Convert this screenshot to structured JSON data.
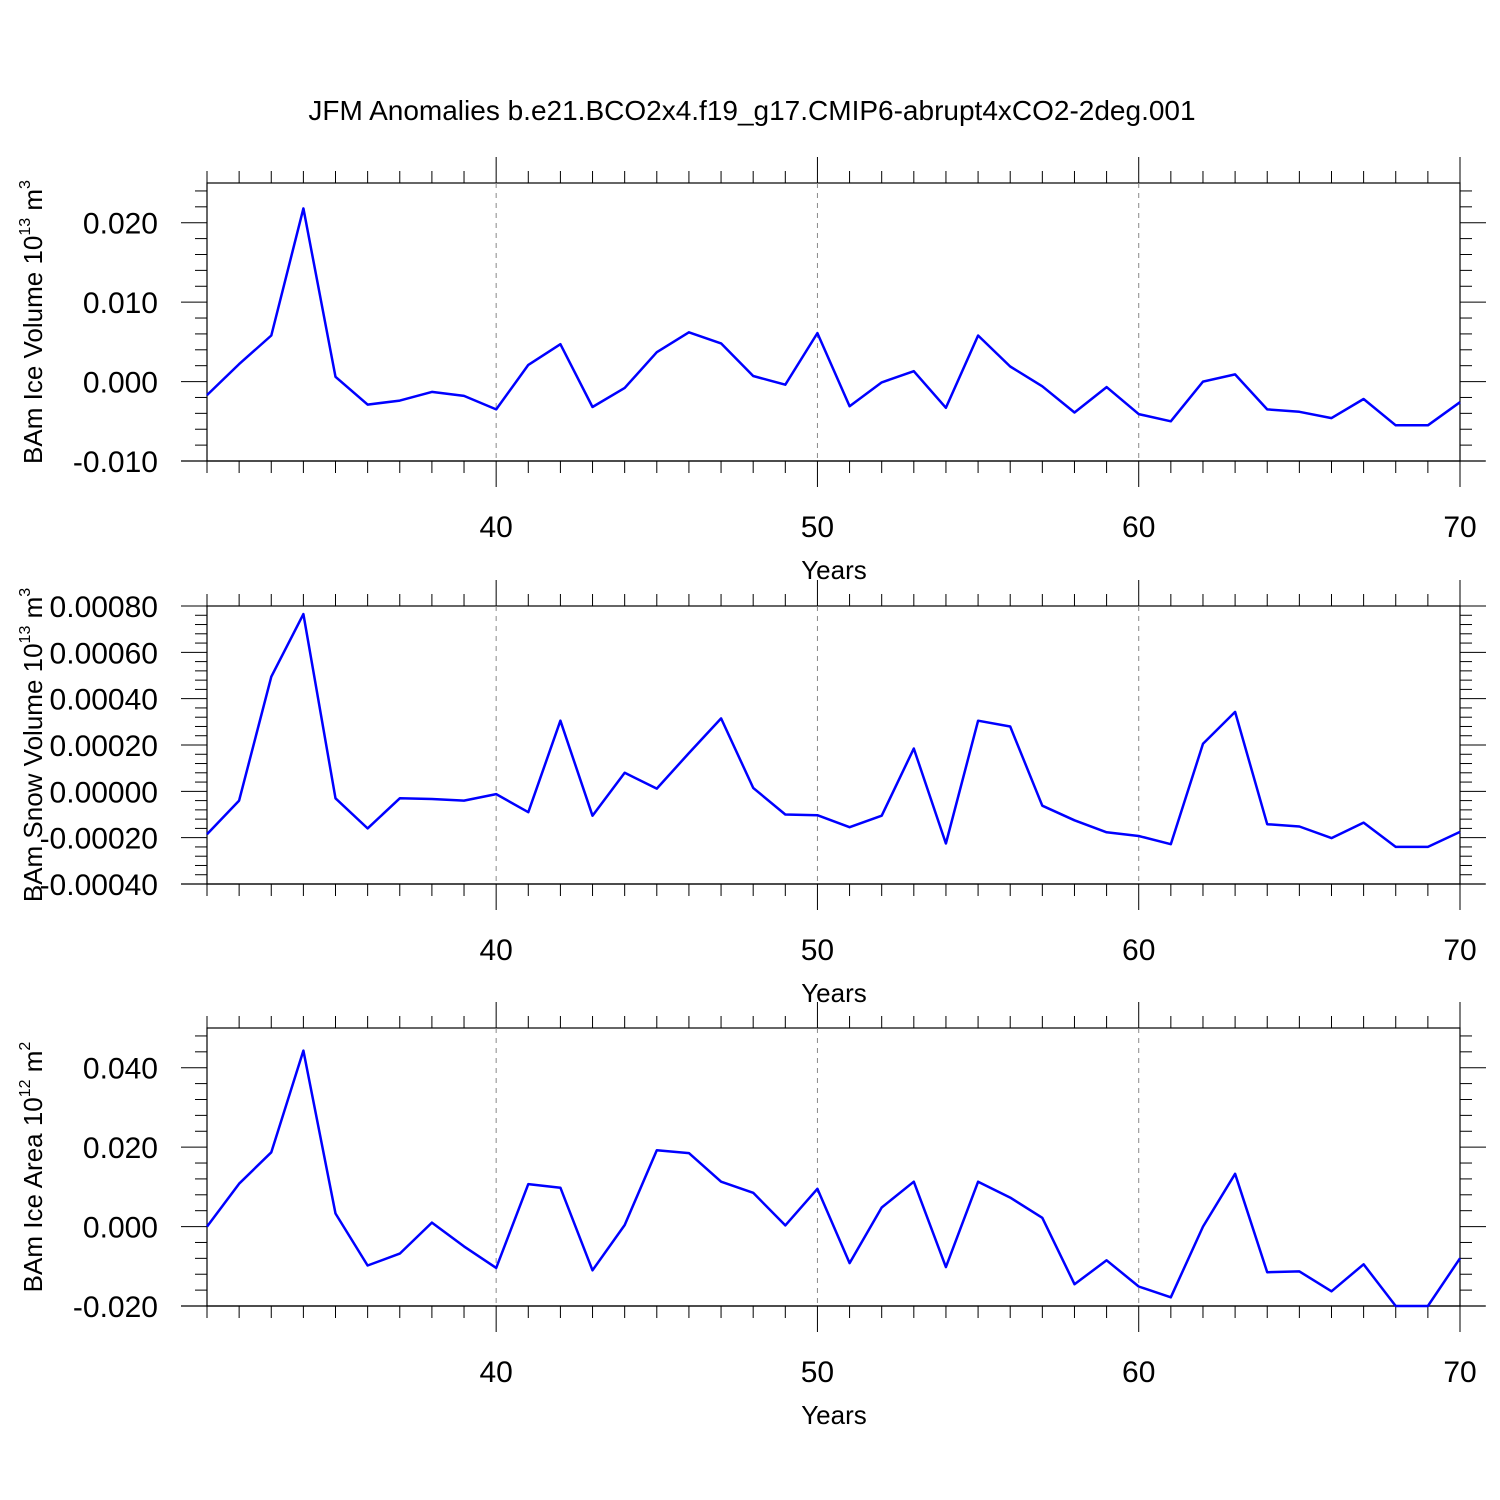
{
  "title": "JFM Anomalies b.e21.BCO2x4.f19_g17.CMIP6-abrupt4xCO2-2deg.001",
  "line_color": "#0000ff",
  "grid_color": "#888888",
  "chart_data": [
    {
      "type": "line",
      "xlabel": "Years",
      "ylabel": {
        "prefix": "BAm Ice Volume 10",
        "exp": "13",
        "unit": " m",
        "unit_exp": "3"
      },
      "xlim": [
        31,
        70
      ],
      "ylim": [
        -0.01,
        0.025
      ],
      "xticks": [
        40,
        50,
        60,
        70
      ],
      "xtick_labels": [
        "40",
        "50",
        "60",
        "70"
      ],
      "xgrid": [
        40,
        50,
        60
      ],
      "yticks": [
        -0.01,
        0.0,
        0.01,
        0.02
      ],
      "ytick_labels": [
        "-0.010",
        "0.000",
        "0.010",
        "0.020"
      ],
      "series": [
        {
          "x": [
            31,
            32,
            33,
            34,
            35,
            36,
            37,
            38,
            39,
            40,
            41,
            42,
            43,
            44,
            45,
            46,
            47,
            48,
            49,
            50,
            51,
            52,
            53,
            54,
            55,
            56,
            57,
            58,
            59,
            60,
            61,
            62,
            63,
            64,
            65,
            66,
            67,
            68,
            69,
            70
          ],
          "values": [
            -0.0017,
            0.0022,
            0.0058,
            0.0218,
            0.0006,
            -0.0029,
            -0.0024,
            -0.0013,
            -0.0018,
            -0.0035,
            0.0021,
            0.0047,
            -0.0032,
            -0.0008,
            0.0037,
            0.0062,
            0.0048,
            0.0007,
            -0.0004,
            0.0061,
            -0.0031,
            -0.0001,
            0.0013,
            -0.0033,
            0.0058,
            0.0019,
            -0.0006,
            -0.0039,
            -0.0007,
            -0.0041,
            -0.005,
            0.0,
            0.0009,
            -0.0035,
            -0.0038,
            -0.0046,
            -0.0022,
            -0.0055,
            -0.0055,
            -0.0026
          ]
        }
      ]
    },
    {
      "type": "line",
      "xlabel": "Years",
      "ylabel": {
        "prefix": "BAm Snow Volume 10",
        "exp": "13",
        "unit": " m",
        "unit_exp": "3"
      },
      "xlim": [
        31,
        70
      ],
      "ylim": [
        -0.0004,
        0.0008
      ],
      "xticks": [
        40,
        50,
        60,
        70
      ],
      "xtick_labels": [
        "40",
        "50",
        "60",
        "70"
      ],
      "xgrid": [
        40,
        50,
        60
      ],
      "yticks": [
        -0.0004,
        -0.0002,
        0.0,
        0.0002,
        0.0004,
        0.0006,
        0.0008
      ],
      "ytick_labels": [
        "-0.00040",
        "-0.00020",
        "0.00000",
        "0.00020",
        "0.00040",
        "0.00060",
        "0.00080"
      ],
      "series": [
        {
          "x": [
            31,
            32,
            33,
            34,
            35,
            36,
            37,
            38,
            39,
            40,
            41,
            42,
            43,
            44,
            45,
            46,
            47,
            48,
            49,
            50,
            51,
            52,
            53,
            54,
            55,
            56,
            57,
            58,
            59,
            60,
            61,
            62,
            63,
            64,
            65,
            66,
            67,
            68,
            69,
            70
          ],
          "values": [
            -0.000185,
            -4e-05,
            0.000495,
            0.000765,
            -3e-05,
            -0.00016,
            -3e-05,
            -3.3e-05,
            -4e-05,
            -1.2e-05,
            -9e-05,
            0.000305,
            -0.000105,
            8e-05,
            1.2e-05,
            0.000165,
            0.000315,
            1.5e-05,
            -0.0001,
            -0.000103,
            -0.000155,
            -0.000105,
            0.000185,
            -0.000225,
            0.000305,
            0.00028,
            -6.2e-05,
            -0.000125,
            -0.000177,
            -0.000193,
            -0.000228,
            0.000205,
            0.000343,
            -0.000142,
            -0.000152,
            -0.000202,
            -0.000135,
            -0.00024,
            -0.00024,
            -0.000175
          ]
        }
      ]
    },
    {
      "type": "line",
      "xlabel": "Years",
      "ylabel": {
        "prefix": "BAm Ice Area 10",
        "exp": "12",
        "unit": " m",
        "unit_exp": "2"
      },
      "xlim": [
        31,
        70
      ],
      "ylim": [
        -0.02,
        0.05
      ],
      "xticks": [
        40,
        50,
        60,
        70
      ],
      "xtick_labels": [
        "40",
        "50",
        "60",
        "70"
      ],
      "xgrid": [
        40,
        50,
        60
      ],
      "yticks": [
        -0.02,
        0.0,
        0.02,
        0.04
      ],
      "ytick_labels": [
        "-0.020",
        "0.000",
        "0.020",
        "0.040"
      ],
      "series": [
        {
          "x": [
            31,
            32,
            33,
            34,
            35,
            36,
            37,
            38,
            39,
            40,
            41,
            42,
            43,
            44,
            45,
            46,
            47,
            48,
            49,
            50,
            51,
            52,
            53,
            54,
            55,
            56,
            57,
            58,
            59,
            60,
            61,
            62,
            63,
            64,
            65,
            66,
            67,
            68,
            69,
            70
          ],
          "values": [
            0.0,
            0.0108,
            0.0187,
            0.0443,
            0.0033,
            -0.0098,
            -0.0068,
            0.001,
            -0.005,
            -0.0104,
            0.0107,
            0.0098,
            -0.011,
            0.0004,
            0.0192,
            0.0185,
            0.0113,
            0.0085,
            0.0003,
            0.0095,
            -0.0092,
            0.0048,
            0.0113,
            -0.0102,
            0.0113,
            0.0073,
            0.0022,
            -0.0145,
            -0.0085,
            -0.0151,
            -0.0178,
            0.0,
            0.0133,
            -0.0115,
            -0.0113,
            -0.0163,
            -0.0095,
            -0.02,
            -0.02,
            -0.008
          ]
        }
      ]
    }
  ]
}
